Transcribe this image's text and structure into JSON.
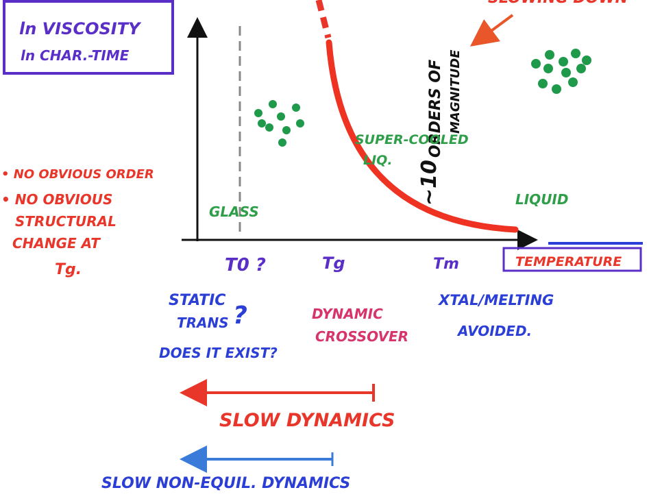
{
  "box": {
    "line1": "ln VISCOSITY",
    "line2": "ln CHAR.-TIME"
  },
  "corner_note": "SLOWING DOWN",
  "magnitude": {
    "prefix": "~10",
    "line1": "ORDERS OF",
    "line2": "MAGNITUDE"
  },
  "regions": {
    "supercooled": [
      "SUPER-COOLED",
      "LIQ."
    ],
    "liquid": "LIQUID",
    "glass": "GLASS"
  },
  "notes": [
    "• NO OBVIOUS ORDER",
    "• NO OBVIOUS",
    "STRUCTURAL",
    "CHANGE AT",
    "Tg."
  ],
  "axis": {
    "t0": "T0 ?",
    "tg": "Tg",
    "tm": "Tm",
    "x_label": "TEMPERATURE"
  },
  "static": [
    "STATIC",
    "TRANS",
    "?",
    "DOES IT EXIST?"
  ],
  "dynamic": [
    "DYNAMIC",
    "CROSSOVER"
  ],
  "melting": [
    "XTAL/MELTING",
    "AVOIDED."
  ],
  "arrows": {
    "slow": "SLOW DYNAMICS",
    "non_equil": "SLOW NON-EQUIL. DYNAMICS"
  }
}
